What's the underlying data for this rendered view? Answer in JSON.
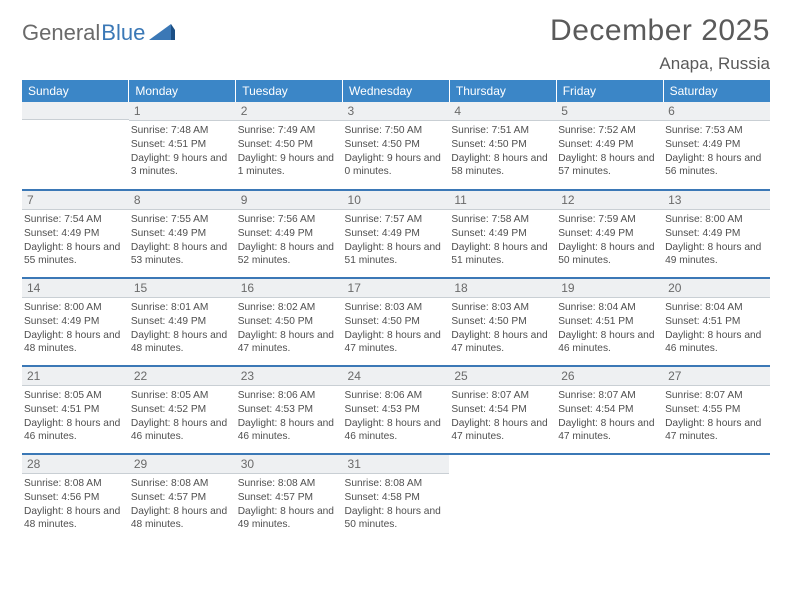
{
  "logo": {
    "text1": "General",
    "text2": "Blue"
  },
  "title": {
    "month": "December 2025",
    "location": "Anapa, Russia"
  },
  "colors": {
    "header_bg": "#3b86c7",
    "header_text": "#ffffff",
    "daynum_bg": "#eef0f2",
    "daynum_text": "#6a6a6a",
    "info_text": "#4f4f4f",
    "week_sep": "#3b78b6",
    "logo_gray": "#6a6a6a",
    "logo_blue": "#3b78b6",
    "title_color": "#5a5a5a"
  },
  "week_headers": [
    "Sunday",
    "Monday",
    "Tuesday",
    "Wednesday",
    "Thursday",
    "Friday",
    "Saturday"
  ],
  "weeks": [
    [
      {
        "empty": true
      },
      {
        "day": "1",
        "sunrise": "Sunrise: 7:48 AM",
        "sunset": "Sunset: 4:51 PM",
        "daylight": "Daylight: 9 hours and 3 minutes."
      },
      {
        "day": "2",
        "sunrise": "Sunrise: 7:49 AM",
        "sunset": "Sunset: 4:50 PM",
        "daylight": "Daylight: 9 hours and 1 minutes."
      },
      {
        "day": "3",
        "sunrise": "Sunrise: 7:50 AM",
        "sunset": "Sunset: 4:50 PM",
        "daylight": "Daylight: 9 hours and 0 minutes."
      },
      {
        "day": "4",
        "sunrise": "Sunrise: 7:51 AM",
        "sunset": "Sunset: 4:50 PM",
        "daylight": "Daylight: 8 hours and 58 minutes."
      },
      {
        "day": "5",
        "sunrise": "Sunrise: 7:52 AM",
        "sunset": "Sunset: 4:49 PM",
        "daylight": "Daylight: 8 hours and 57 minutes."
      },
      {
        "day": "6",
        "sunrise": "Sunrise: 7:53 AM",
        "sunset": "Sunset: 4:49 PM",
        "daylight": "Daylight: 8 hours and 56 minutes."
      }
    ],
    [
      {
        "day": "7",
        "sunrise": "Sunrise: 7:54 AM",
        "sunset": "Sunset: 4:49 PM",
        "daylight": "Daylight: 8 hours and 55 minutes."
      },
      {
        "day": "8",
        "sunrise": "Sunrise: 7:55 AM",
        "sunset": "Sunset: 4:49 PM",
        "daylight": "Daylight: 8 hours and 53 minutes."
      },
      {
        "day": "9",
        "sunrise": "Sunrise: 7:56 AM",
        "sunset": "Sunset: 4:49 PM",
        "daylight": "Daylight: 8 hours and 52 minutes."
      },
      {
        "day": "10",
        "sunrise": "Sunrise: 7:57 AM",
        "sunset": "Sunset: 4:49 PM",
        "daylight": "Daylight: 8 hours and 51 minutes."
      },
      {
        "day": "11",
        "sunrise": "Sunrise: 7:58 AM",
        "sunset": "Sunset: 4:49 PM",
        "daylight": "Daylight: 8 hours and 51 minutes."
      },
      {
        "day": "12",
        "sunrise": "Sunrise: 7:59 AM",
        "sunset": "Sunset: 4:49 PM",
        "daylight": "Daylight: 8 hours and 50 minutes."
      },
      {
        "day": "13",
        "sunrise": "Sunrise: 8:00 AM",
        "sunset": "Sunset: 4:49 PM",
        "daylight": "Daylight: 8 hours and 49 minutes."
      }
    ],
    [
      {
        "day": "14",
        "sunrise": "Sunrise: 8:00 AM",
        "sunset": "Sunset: 4:49 PM",
        "daylight": "Daylight: 8 hours and 48 minutes."
      },
      {
        "day": "15",
        "sunrise": "Sunrise: 8:01 AM",
        "sunset": "Sunset: 4:49 PM",
        "daylight": "Daylight: 8 hours and 48 minutes."
      },
      {
        "day": "16",
        "sunrise": "Sunrise: 8:02 AM",
        "sunset": "Sunset: 4:50 PM",
        "daylight": "Daylight: 8 hours and 47 minutes."
      },
      {
        "day": "17",
        "sunrise": "Sunrise: 8:03 AM",
        "sunset": "Sunset: 4:50 PM",
        "daylight": "Daylight: 8 hours and 47 minutes."
      },
      {
        "day": "18",
        "sunrise": "Sunrise: 8:03 AM",
        "sunset": "Sunset: 4:50 PM",
        "daylight": "Daylight: 8 hours and 47 minutes."
      },
      {
        "day": "19",
        "sunrise": "Sunrise: 8:04 AM",
        "sunset": "Sunset: 4:51 PM",
        "daylight": "Daylight: 8 hours and 46 minutes."
      },
      {
        "day": "20",
        "sunrise": "Sunrise: 8:04 AM",
        "sunset": "Sunset: 4:51 PM",
        "daylight": "Daylight: 8 hours and 46 minutes."
      }
    ],
    [
      {
        "day": "21",
        "sunrise": "Sunrise: 8:05 AM",
        "sunset": "Sunset: 4:51 PM",
        "daylight": "Daylight: 8 hours and 46 minutes."
      },
      {
        "day": "22",
        "sunrise": "Sunrise: 8:05 AM",
        "sunset": "Sunset: 4:52 PM",
        "daylight": "Daylight: 8 hours and 46 minutes."
      },
      {
        "day": "23",
        "sunrise": "Sunrise: 8:06 AM",
        "sunset": "Sunset: 4:53 PM",
        "daylight": "Daylight: 8 hours and 46 minutes."
      },
      {
        "day": "24",
        "sunrise": "Sunrise: 8:06 AM",
        "sunset": "Sunset: 4:53 PM",
        "daylight": "Daylight: 8 hours and 46 minutes."
      },
      {
        "day": "25",
        "sunrise": "Sunrise: 8:07 AM",
        "sunset": "Sunset: 4:54 PM",
        "daylight": "Daylight: 8 hours and 47 minutes."
      },
      {
        "day": "26",
        "sunrise": "Sunrise: 8:07 AM",
        "sunset": "Sunset: 4:54 PM",
        "daylight": "Daylight: 8 hours and 47 minutes."
      },
      {
        "day": "27",
        "sunrise": "Sunrise: 8:07 AM",
        "sunset": "Sunset: 4:55 PM",
        "daylight": "Daylight: 8 hours and 47 minutes."
      }
    ],
    [
      {
        "day": "28",
        "sunrise": "Sunrise: 8:08 AM",
        "sunset": "Sunset: 4:56 PM",
        "daylight": "Daylight: 8 hours and 48 minutes."
      },
      {
        "day": "29",
        "sunrise": "Sunrise: 8:08 AM",
        "sunset": "Sunset: 4:57 PM",
        "daylight": "Daylight: 8 hours and 48 minutes."
      },
      {
        "day": "30",
        "sunrise": "Sunrise: 8:08 AM",
        "sunset": "Sunset: 4:57 PM",
        "daylight": "Daylight: 8 hours and 49 minutes."
      },
      {
        "day": "31",
        "sunrise": "Sunrise: 8:08 AM",
        "sunset": "Sunset: 4:58 PM",
        "daylight": "Daylight: 8 hours and 50 minutes."
      },
      {
        "empty": true,
        "blank": true
      },
      {
        "empty": true,
        "blank": true
      },
      {
        "empty": true,
        "blank": true
      }
    ]
  ]
}
